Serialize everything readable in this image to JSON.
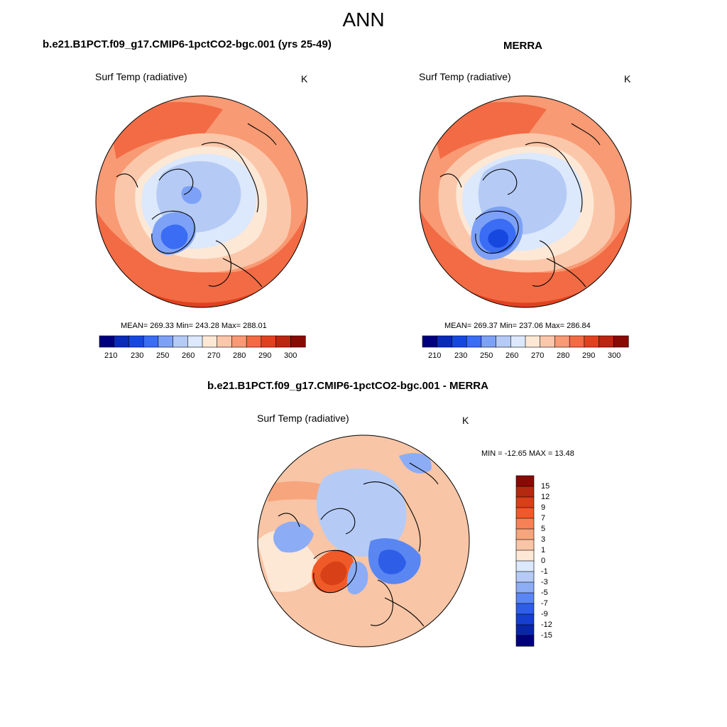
{
  "title": "ANN",
  "panels": [
    {
      "subtitle": "b.e21.B1PCT.f09_g17.CMIP6-1pctCO2-bgc.001 (yrs 25-49)",
      "left_label": "Surf Temp (radiative)",
      "unit": "K",
      "stats": "MEAN= 269.33  Min= 243.28  Max= 288.01",
      "colorbar_ticks": [
        "210",
        "230",
        "250",
        "260",
        "270",
        "280",
        "290",
        "300"
      ]
    },
    {
      "subtitle": "MERRA",
      "left_label": "Surf Temp (radiative)",
      "unit": "K",
      "stats": "MEAN= 269.37  Min= 237.06  Max= 286.84",
      "colorbar_ticks": [
        "210",
        "230",
        "250",
        "260",
        "270",
        "280",
        "290",
        "300"
      ]
    },
    {
      "subtitle": "b.e21.B1PCT.f09_g17.CMIP6-1pctCO2-bgc.001 - MERRA",
      "left_label": "Surf Temp (radiative)",
      "unit": "K",
      "stats": "MIN = -12.65 MAX =  13.48",
      "colorbar_ticks": [
        "15",
        "12",
        "9",
        "7",
        "5",
        "3",
        "1",
        "0",
        "-1",
        "-3",
        "-5",
        "-7",
        "-9",
        "-12",
        "-15"
      ]
    }
  ],
  "colors": {
    "abs_scale": [
      "#00007f",
      "#0a2ab8",
      "#1648e0",
      "#3a6cf4",
      "#7da1f6",
      "#b5cbf6",
      "#dce8fb",
      "#fde8d6",
      "#fbc7aa",
      "#f89a74",
      "#f26b44",
      "#e0421f",
      "#bb2511",
      "#880a04"
    ],
    "diff_scale": [
      "#880a04",
      "#b32a10",
      "#d84018",
      "#f05a28",
      "#f58254",
      "#f7a57c",
      "#f8c5a6",
      "#fde8d6",
      "#dce8fb",
      "#b5cbf6",
      "#8cadf6",
      "#5a86f2",
      "#2e5ee8",
      "#163fcf",
      "#0a26a8",
      "#00007f"
    ],
    "coastline": "#000000"
  }
}
